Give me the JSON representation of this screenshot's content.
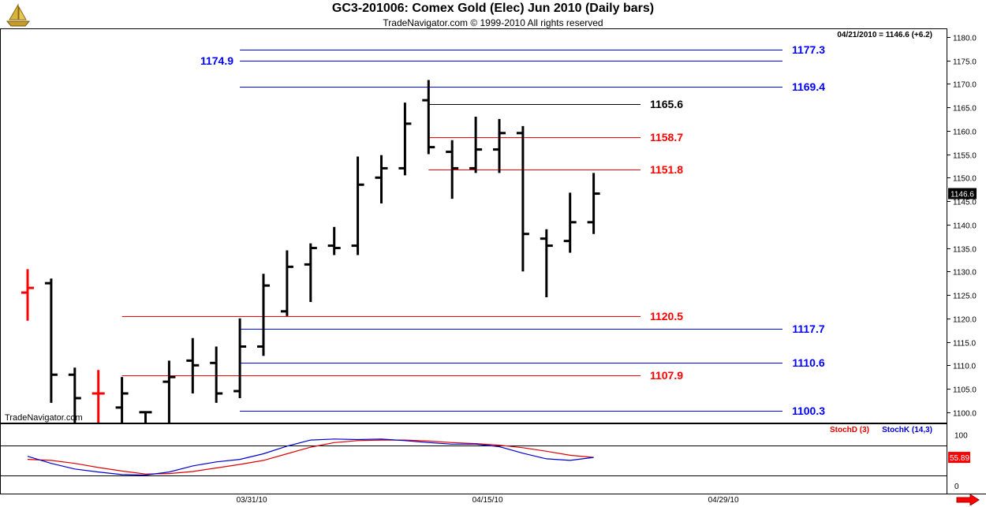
{
  "header": {
    "title": "GC3-201006:  Comex Gold (Elec) Jun 2010  (Daily bars)",
    "subtitle": "TradeNavigator.com © 1999-2010 All rights reserved",
    "status": "04/21/2010 = 1146.6 (+6.2)",
    "watermark": "TradeNavigator.com"
  },
  "icons": {
    "logo": "sailboat-icon",
    "scroll": "right-arrow-icon"
  },
  "colors": {
    "red_level": "#ff0000",
    "blue_level": "#0000ff",
    "black_level": "#000000",
    "bar": "#000000",
    "stochD": "#e00000",
    "stochK": "#0000d0"
  },
  "chart_data": [
    {
      "type": "ohlc",
      "title": "GC3-201006:  Comex Gold (Elec) Jun 2010  (Daily bars)",
      "ylim": [
        1097.5,
        1182
      ],
      "y_ticks": [
        1100,
        1105,
        1110,
        1115,
        1120,
        1125,
        1130,
        1135,
        1140,
        1145,
        1150,
        1155,
        1160,
        1165,
        1170,
        1175,
        1180
      ],
      "x_tick_labels": [
        {
          "label": "03/31/10",
          "bar_index": 9.5
        },
        {
          "label": "04/15/10",
          "bar_index": 19.5
        },
        {
          "label": "04/29/10",
          "bar_index": 29.5
        }
      ],
      "last_price_label": "1146.6",
      "bars": [
        {
          "o": 1125.5,
          "h": 1130.5,
          "l": 1119.5,
          "c": 1126.5,
          "color": "red"
        },
        {
          "o": 1127.5,
          "h": 1128.5,
          "l": 1102.0,
          "c": 1108.0,
          "color": "black"
        },
        {
          "o": 1108.0,
          "h": 1109.5,
          "l": 1097.5,
          "c": 1103.0,
          "color": "black"
        },
        {
          "o": 1104.0,
          "h": 1109.0,
          "l": 1097.5,
          "c": 1104.0,
          "color": "red"
        },
        {
          "o": 1101.0,
          "h": 1107.5,
          "l": 1097.5,
          "c": 1104.0,
          "color": "black"
        },
        {
          "o": 1100.0,
          "h": 1100.0,
          "l": 1097.5,
          "c": 1100.0,
          "color": "black"
        },
        {
          "o": 1106.5,
          "h": 1111.0,
          "l": 1097.5,
          "c": 1107.5,
          "color": "black"
        },
        {
          "o": 1111.0,
          "h": 1115.8,
          "l": 1104.0,
          "c": 1110.0,
          "color": "black"
        },
        {
          "o": 1110.5,
          "h": 1114.0,
          "l": 1102.0,
          "c": 1104.0,
          "color": "black"
        },
        {
          "o": 1104.5,
          "h": 1120.0,
          "l": 1103.0,
          "c": 1114.0,
          "color": "black"
        },
        {
          "o": 1114.0,
          "h": 1129.5,
          "l": 1112.0,
          "c": 1127.0,
          "color": "black"
        },
        {
          "o": 1121.5,
          "h": 1134.5,
          "l": 1120.5,
          "c": 1131.0,
          "color": "black"
        },
        {
          "o": 1131.5,
          "h": 1136.0,
          "l": 1123.5,
          "c": 1135.0,
          "color": "black"
        },
        {
          "o": 1135.5,
          "h": 1139.5,
          "l": 1133.5,
          "c": 1135.0,
          "color": "black"
        },
        {
          "o": 1135.5,
          "h": 1154.5,
          "l": 1133.5,
          "c": 1148.5,
          "color": "black"
        },
        {
          "o": 1150.0,
          "h": 1154.8,
          "l": 1144.5,
          "c": 1152.0,
          "color": "black"
        },
        {
          "o": 1152.0,
          "h": 1166.0,
          "l": 1150.5,
          "c": 1161.5,
          "color": "black"
        },
        {
          "o": 1166.5,
          "h": 1170.8,
          "l": 1155.0,
          "c": 1156.5,
          "color": "black"
        },
        {
          "o": 1155.5,
          "h": 1158.0,
          "l": 1145.5,
          "c": 1152.0,
          "color": "black"
        },
        {
          "o": 1152.0,
          "h": 1163.0,
          "l": 1151.0,
          "c": 1156.0,
          "color": "black"
        },
        {
          "o": 1156.0,
          "h": 1162.5,
          "l": 1151.0,
          "c": 1159.5,
          "color": "black"
        },
        {
          "o": 1159.5,
          "h": 1161.0,
          "l": 1130.0,
          "c": 1138.0,
          "color": "black"
        },
        {
          "o": 1137.0,
          "h": 1139.0,
          "l": 1124.5,
          "c": 1135.5,
          "color": "black"
        },
        {
          "o": 1136.5,
          "h": 1146.8,
          "l": 1134.0,
          "c": 1140.5,
          "color": "black"
        },
        {
          "o": 1140.5,
          "h": 1151.0,
          "l": 1138.0,
          "c": 1146.6,
          "color": "black"
        }
      ],
      "levels": [
        {
          "label": "1177.3",
          "value": 1177.3,
          "color": "blue",
          "start_bar": 9,
          "label_side": "right"
        },
        {
          "label": "1174.9",
          "value": 1174.9,
          "color": "blue",
          "start_bar": 9,
          "label_side": "left"
        },
        {
          "label": "1169.4",
          "value": 1169.4,
          "color": "blue",
          "start_bar": 9,
          "label_side": "right"
        },
        {
          "label": "1165.6",
          "value": 1165.6,
          "color": "black",
          "start_bar": 17,
          "label_side": "mid"
        },
        {
          "label": "1158.7",
          "value": 1158.7,
          "color": "red",
          "start_bar": 17,
          "label_side": "mid"
        },
        {
          "label": "1151.8",
          "value": 1151.8,
          "color": "red",
          "start_bar": 17,
          "label_side": "mid"
        },
        {
          "label": "1120.5",
          "value": 1120.5,
          "color": "red",
          "start_bar": 4,
          "label_side": "mid"
        },
        {
          "label": "1117.7",
          "value": 1117.7,
          "color": "blue",
          "start_bar": 9,
          "label_side": "right"
        },
        {
          "label": "1110.6",
          "value": 1110.6,
          "color": "blue",
          "start_bar": 9,
          "label_side": "right"
        },
        {
          "label": "1107.9",
          "value": 1107.9,
          "color": "red",
          "start_bar": 4,
          "label_side": "mid"
        },
        {
          "label": "1100.3",
          "value": 1100.3,
          "color": "blue",
          "start_bar": 9,
          "label_side": "right"
        }
      ]
    },
    {
      "type": "line",
      "ylim": [
        -15,
        115
      ],
      "y_ticks": [
        0,
        100
      ],
      "reference_lines": [
        20,
        80
      ],
      "last_value_label": "55.89",
      "series": [
        {
          "name": "StochD (3)",
          "color": "red",
          "x": [
            0,
            1,
            2,
            3,
            4,
            5,
            6,
            7,
            8,
            9,
            10,
            11,
            12,
            13,
            14,
            15,
            16,
            17,
            18,
            19,
            20,
            21,
            22,
            23,
            24
          ],
          "values": [
            52,
            50,
            44,
            36,
            29,
            23,
            24,
            28,
            35,
            42,
            50,
            63,
            76,
            85,
            89,
            90,
            90,
            88,
            85,
            83,
            80,
            75,
            68,
            60,
            55.89
          ]
        },
        {
          "name": "StochK (14,3)",
          "color": "blue",
          "x": [
            0,
            1,
            2,
            3,
            4,
            5,
            6,
            7,
            8,
            9,
            10,
            11,
            12,
            13,
            14,
            15,
            16,
            17,
            18,
            19,
            20,
            21,
            22,
            23,
            24
          ],
          "values": [
            58,
            44,
            33,
            27,
            22,
            21,
            27,
            39,
            47,
            52,
            63,
            78,
            90,
            92,
            91,
            92,
            89,
            85,
            82,
            82,
            77,
            64,
            53,
            50,
            55.89
          ]
        }
      ]
    }
  ]
}
